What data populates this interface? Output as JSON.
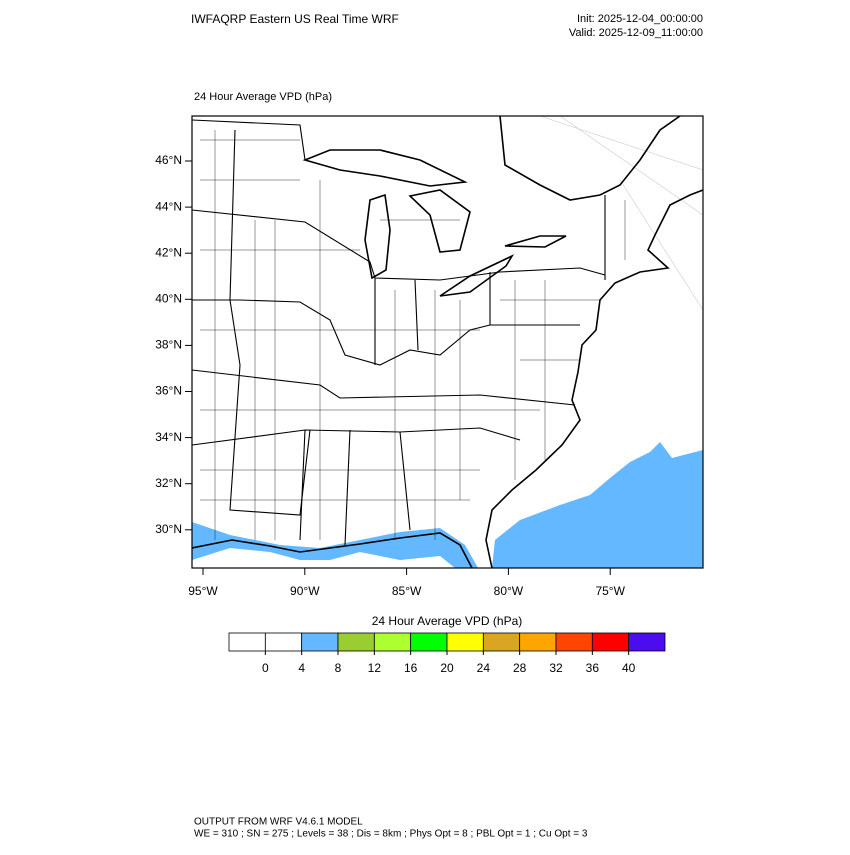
{
  "header": {
    "title": "IWFAQRP Eastern US Real Time WRF",
    "init": "Init: 2025-12-04_00:00:00",
    "valid": "Valid: 2025-12-09_11:00:00"
  },
  "map": {
    "subtitle": "24 Hour Average VPD   (hPa)",
    "lat_labels": [
      "46°N",
      "44°N",
      "42°N",
      "40°N",
      "38°N",
      "36°N",
      "34°N",
      "32°N",
      "30°N"
    ],
    "lon_labels": [
      "95°W",
      "90°W",
      "85°W",
      "80°W",
      "75°W"
    ]
  },
  "colorbar": {
    "title": "24 Hour Average VPD  (hPa)",
    "levels": [
      0,
      4,
      8,
      12,
      16,
      20,
      24,
      28,
      32,
      36,
      40
    ],
    "colors": [
      "#ffffff",
      "#ffffff",
      "#63b8ff",
      "#9acd32",
      "#adff2f",
      "#00ff00",
      "#ffff00",
      "#daa520",
      "#ffa500",
      "#ff4500",
      "#ff0000",
      "#4b0cf0"
    ]
  },
  "footer": {
    "line1": "OUTPUT FROM WRF V4.6.1 MODEL",
    "line2": "WE = 310 ; SN = 275 ; Levels = 38 ; Dis = 8km ; Phys Opt = 8 ; PBL Opt = 1 ; Cu Opt = 3"
  }
}
